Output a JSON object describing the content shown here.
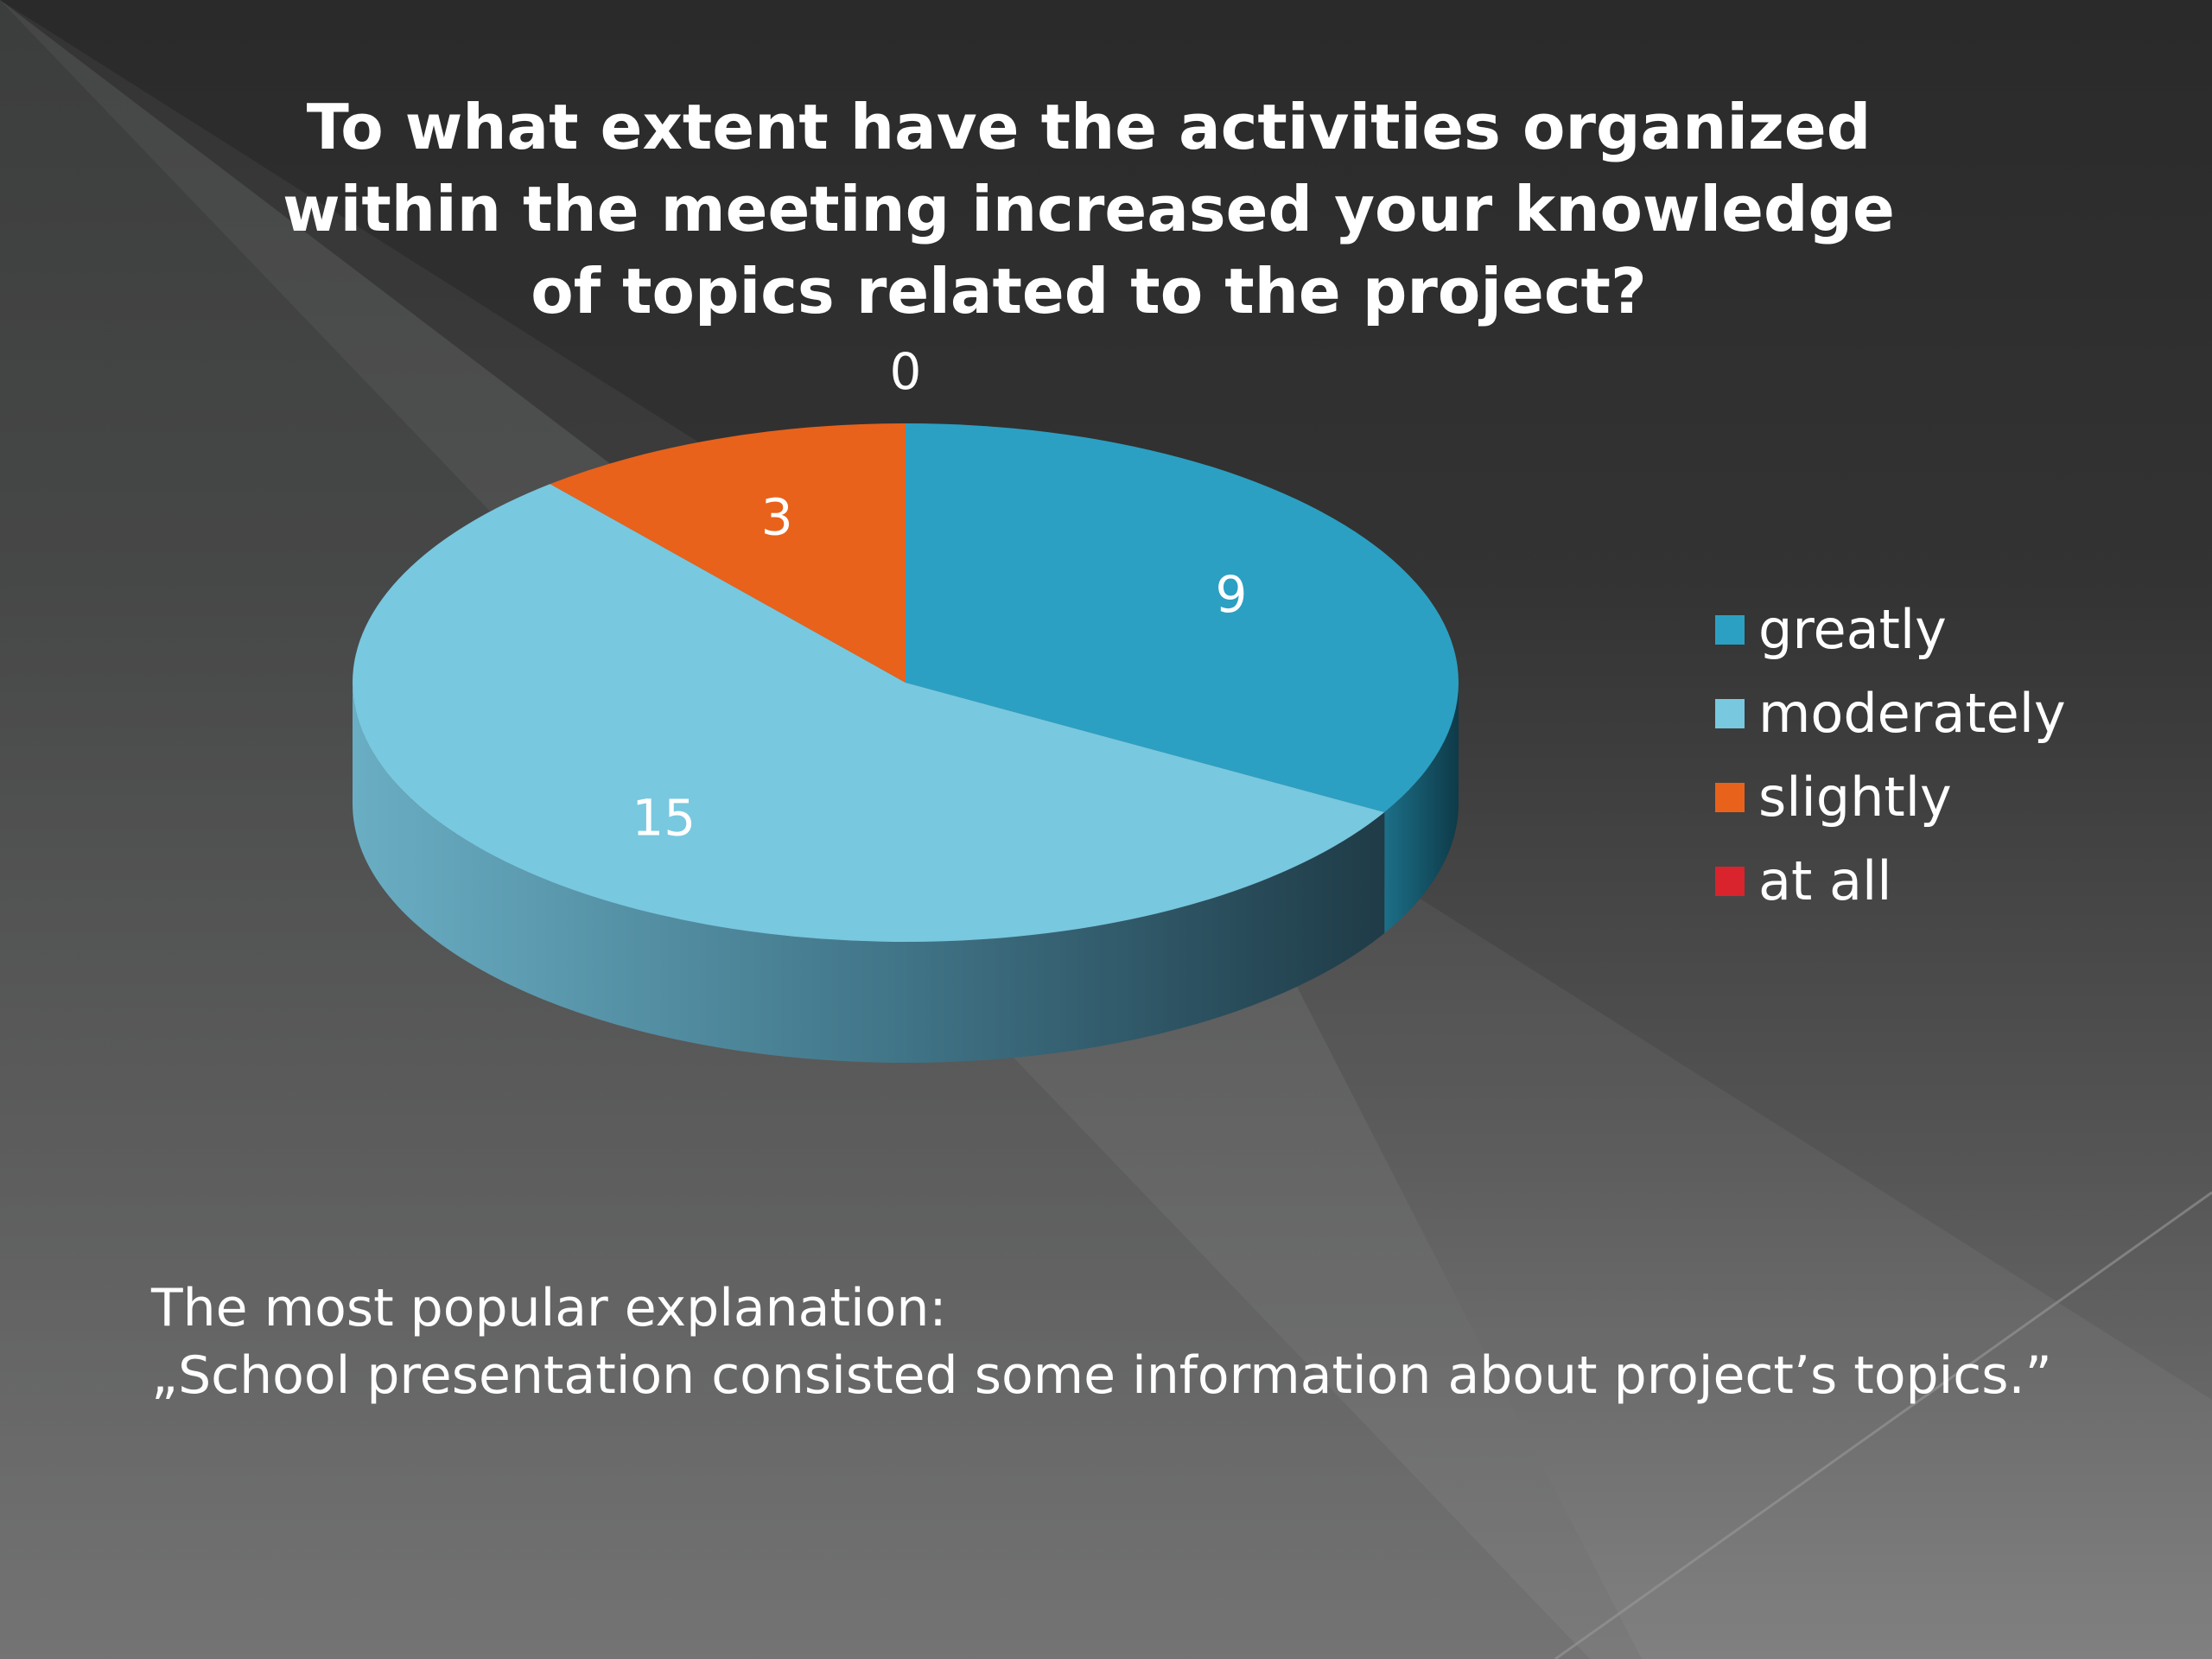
{
  "slide": {
    "explanation_heading": "The most popular explanation:",
    "explanation_quote": "„School presentation consisted some information about project’s topics.”"
  },
  "chart_data": {
    "type": "pie",
    "title": "To what extent have the activities organized within the meeting increased your knowledge of topics related to the project?",
    "categories": [
      "greatly",
      "moderately",
      "slightly",
      "at all"
    ],
    "values": [
      9,
      15,
      3,
      0
    ],
    "colors": [
      "#2ba0c3",
      "#78c8df",
      "#e8621b",
      "#d9232d"
    ],
    "legend_position": "right",
    "start_angle": "12 o'clock, clockwise"
  }
}
